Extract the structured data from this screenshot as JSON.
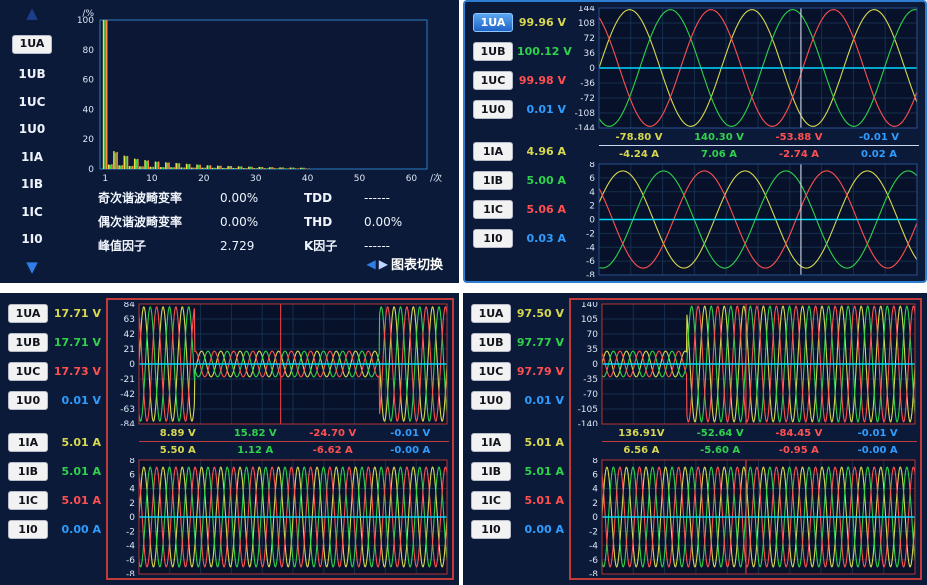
{
  "icons": {
    "up": "▲",
    "down": "▼",
    "left": "◀",
    "right": "▶"
  },
  "harmonic": {
    "channels": [
      "1UA",
      "1UB",
      "1UC",
      "1U0",
      "1IA",
      "1IB",
      "1IC",
      "1I0"
    ],
    "stats": [
      {
        "label": "奇次谐波畸变率",
        "value": "0.00%",
        "label2": "TDD",
        "value2": "------"
      },
      {
        "label": "偶次谐波畸变率",
        "value": "0.00%",
        "label2": "THD",
        "value2": "0.00%"
      },
      {
        "label": "峰值因子",
        "value": "2.729",
        "label2": "K因子",
        "value2": "------"
      }
    ],
    "chart_switch_label": "图表切换"
  },
  "wave_rt": {
    "channels": [
      {
        "id": "1UA",
        "value": "99.96 V",
        "color": "#d8d84e"
      },
      {
        "id": "1UB",
        "value": "100.12 V",
        "color": "#2fd24a"
      },
      {
        "id": "1UC",
        "value": "99.98 V",
        "color": "#ff5050"
      },
      {
        "id": "1U0",
        "value": "0.01 V",
        "color": "#2f9dff"
      },
      {
        "id": "1IA",
        "value": "4.96 A",
        "color": "#d8d84e"
      },
      {
        "id": "1IB",
        "value": "5.00 A",
        "color": "#2fd24a"
      },
      {
        "id": "1IC",
        "value": "5.06 A",
        "color": "#ff5050"
      },
      {
        "id": "1I0",
        "value": "0.03 A",
        "color": "#2f9dff"
      }
    ],
    "readouts_v": [
      {
        "text": "-78.80 V",
        "color": "#d8d84e"
      },
      {
        "text": "140.30 V",
        "color": "#2fd24a"
      },
      {
        "text": "-53.88 V",
        "color": "#ff5050"
      },
      {
        "text": "-0.01 V",
        "color": "#2f9dff"
      }
    ],
    "readouts_i": [
      {
        "text": "-4.24 A",
        "color": "#d8d84e"
      },
      {
        "text": "7.06 A",
        "color": "#2fd24a"
      },
      {
        "text": "-2.74 A",
        "color": "#ff5050"
      },
      {
        "text": "0.02 A",
        "color": "#2f9dff"
      }
    ]
  },
  "wave_bl": {
    "channels": [
      {
        "id": "1UA",
        "value": "17.71 V",
        "color": "#d8d84e"
      },
      {
        "id": "1UB",
        "value": "17.71 V",
        "color": "#2fd24a"
      },
      {
        "id": "1UC",
        "value": "17.73 V",
        "color": "#ff5050"
      },
      {
        "id": "1U0",
        "value": "0.01 V",
        "color": "#2f9dff"
      },
      {
        "id": "1IA",
        "value": "5.01 A",
        "color": "#d8d84e"
      },
      {
        "id": "1IB",
        "value": "5.01 A",
        "color": "#2fd24a"
      },
      {
        "id": "1IC",
        "value": "5.01 A",
        "color": "#ff5050"
      },
      {
        "id": "1I0",
        "value": "0.00 A",
        "color": "#2f9dff"
      }
    ],
    "readouts_v": [
      {
        "text": "8.89 V",
        "color": "#d8d84e"
      },
      {
        "text": "15.82 V",
        "color": "#2fd24a"
      },
      {
        "text": "-24.70 V",
        "color": "#ff5050"
      },
      {
        "text": "-0.01 V",
        "color": "#2f9dff"
      }
    ],
    "readouts_i": [
      {
        "text": "5.50 A",
        "color": "#d8d84e"
      },
      {
        "text": "1.12 A",
        "color": "#2fd24a"
      },
      {
        "text": "-6.62 A",
        "color": "#ff5050"
      },
      {
        "text": "-0.00 A",
        "color": "#2f9dff"
      }
    ]
  },
  "wave_br": {
    "channels": [
      {
        "id": "1UA",
        "value": "97.50 V",
        "color": "#d8d84e"
      },
      {
        "id": "1UB",
        "value": "97.77 V",
        "color": "#2fd24a"
      },
      {
        "id": "1UC",
        "value": "97.79 V",
        "color": "#ff5050"
      },
      {
        "id": "1U0",
        "value": "0.01 V",
        "color": "#2f9dff"
      },
      {
        "id": "1IA",
        "value": "5.01 A",
        "color": "#d8d84e"
      },
      {
        "id": "1IB",
        "value": "5.01 A",
        "color": "#2fd24a"
      },
      {
        "id": "1IC",
        "value": "5.01 A",
        "color": "#ff5050"
      },
      {
        "id": "1I0",
        "value": "0.00 A",
        "color": "#2f9dff"
      }
    ],
    "readouts_v": [
      {
        "text": "136.91V",
        "color": "#d8d84e"
      },
      {
        "text": "-52.64 V",
        "color": "#2fd24a"
      },
      {
        "text": "-84.45 V",
        "color": "#ff5050"
      },
      {
        "text": "-0.01 V",
        "color": "#2f9dff"
      }
    ],
    "readouts_i": [
      {
        "text": "6.56 A",
        "color": "#d8d84e"
      },
      {
        "text": "-5.60 A",
        "color": "#2fd24a"
      },
      {
        "text": "-0.95 A",
        "color": "#ff5050"
      },
      {
        "text": "-0.00 A",
        "color": "#2f9dff"
      }
    ]
  },
  "chart_data": [
    {
      "type": "bar",
      "y_unit": "/%",
      "x_unit": "/次",
      "ylim": [
        0,
        100
      ],
      "yticks": [
        100,
        80,
        60,
        40,
        20,
        0
      ],
      "xticks": [
        1,
        10,
        20,
        30,
        40,
        50,
        60
      ],
      "xmax": 63,
      "orders": [
        1,
        2,
        3,
        4,
        5,
        6,
        7,
        8,
        9,
        10,
        11,
        12,
        13,
        14,
        15,
        16,
        17,
        18,
        19,
        20,
        21,
        22,
        23,
        24,
        25,
        26,
        27,
        28,
        29,
        30,
        31,
        32,
        33,
        34,
        35,
        36,
        37,
        38,
        39,
        40
      ],
      "series": [
        {
          "name": "1UA",
          "color": "#e8e24e",
          "values": [
            100,
            3,
            12,
            2.5,
            9,
            2,
            7,
            1.8,
            6,
            1.5,
            5,
            1.3,
            4.5,
            1.2,
            4,
            1.1,
            3.5,
            1,
            3,
            0.9,
            2.5,
            0.8,
            2.2,
            0.7,
            2,
            0.7,
            1.8,
            0.6,
            1.6,
            0.6,
            1.4,
            0.5,
            1.2,
            0.5,
            1.1,
            0.4,
            1,
            0.4,
            0.9,
            0.3
          ]
        },
        {
          "name": "1UB",
          "color": "#2fd24a",
          "values": [
            100,
            2.8,
            11,
            2.3,
            8.5,
            1.9,
            6.5,
            1.7,
            5.5,
            1.4,
            4.8,
            1.2,
            4.2,
            1.1,
            3.8,
            1,
            3.2,
            0.9,
            2.8,
            0.8,
            2.4,
            0.8,
            2.1,
            0.7,
            1.9,
            0.6,
            1.7,
            0.6,
            1.5,
            0.5,
            1.3,
            0.5,
            1.2,
            0.4,
            1,
            0.4,
            0.9,
            0.3,
            0.8,
            0.3
          ]
        },
        {
          "name": "1UC",
          "color": "#ff8c42",
          "values": [
            100,
            3.2,
            11.5,
            2.6,
            8.8,
            2.1,
            6.8,
            1.8,
            5.8,
            1.5,
            5,
            1.3,
            4.4,
            1.2,
            3.9,
            1,
            3.4,
            0.9,
            2.9,
            0.9,
            2.5,
            0.8,
            2.2,
            0.7,
            2,
            0.7,
            1.7,
            0.6,
            1.5,
            0.6,
            1.4,
            0.5,
            1.2,
            0.5,
            1.1,
            0.4,
            1,
            0.4,
            0.9,
            0.3
          ]
        }
      ]
    },
    {
      "type": "line",
      "ylim": [
        -144,
        144
      ],
      "yticks": [
        144,
        108,
        72,
        36,
        0,
        -36,
        -72,
        -108,
        -144
      ],
      "cycles": 2.6,
      "series": [
        {
          "name": "1UA",
          "color": "#d8d84e",
          "amplitude": 140,
          "phase_deg": 0
        },
        {
          "name": "1UB",
          "color": "#2fd24a",
          "amplitude": 140,
          "phase_deg": -120
        },
        {
          "name": "1UC",
          "color": "#ff5050",
          "amplitude": 140,
          "phase_deg": 120
        },
        {
          "name": "1U0",
          "color": "#00d8ff",
          "amplitude": 0,
          "phase_deg": 0,
          "width": 1.6
        }
      ],
      "cursor": {
        "x": 0.635,
        "color": "#e8eefc"
      },
      "frame": "#27508f"
    },
    {
      "type": "line",
      "ylim": [
        -8,
        8
      ],
      "yticks": [
        8,
        6,
        4,
        2,
        0,
        -2,
        -4,
        -6,
        -8
      ],
      "cycles": 2.6,
      "series": [
        {
          "name": "1IA",
          "color": "#d8d84e",
          "amplitude": 7,
          "phase_deg": 20
        },
        {
          "name": "1IB",
          "color": "#2fd24a",
          "amplitude": 7,
          "phase_deg": -100
        },
        {
          "name": "1IC",
          "color": "#ff5050",
          "amplitude": 7,
          "phase_deg": 140
        },
        {
          "name": "1I0",
          "color": "#00d8ff",
          "amplitude": 0,
          "phase_deg": 0,
          "width": 1.6
        }
      ],
      "cursor": {
        "x": 0.635,
        "color": "#e8eefc"
      },
      "frame": "#27508f"
    },
    {
      "type": "line",
      "ylim": [
        -84,
        84
      ],
      "yticks": [
        84,
        63,
        42,
        21,
        0,
        -21,
        -42,
        -63,
        -84
      ],
      "cycles": 16,
      "series": [
        {
          "name": "1UA",
          "color": "#d8d84e",
          "phase_deg": 0,
          "envelope": [
            {
              "t0": 0,
              "t1": 0.18,
              "amp": 80
            },
            {
              "t0": 0.18,
              "t1": 0.78,
              "amp": 18
            },
            {
              "t0": 0.78,
              "t1": 1,
              "amp": 80
            }
          ]
        },
        {
          "name": "1UB",
          "color": "#2fd24a",
          "phase_deg": -120,
          "envelope": [
            {
              "t0": 0,
              "t1": 0.18,
              "amp": 80
            },
            {
              "t0": 0.18,
              "t1": 0.78,
              "amp": 18
            },
            {
              "t0": 0.78,
              "t1": 1,
              "amp": 80
            }
          ]
        },
        {
          "name": "1UC",
          "color": "#ff5050",
          "phase_deg": 120,
          "envelope": [
            {
              "t0": 0,
              "t1": 0.18,
              "amp": 80
            },
            {
              "t0": 0.18,
              "t1": 0.78,
              "amp": 18
            },
            {
              "t0": 0.78,
              "t1": 1,
              "amp": 80
            }
          ]
        },
        {
          "name": "1U0",
          "color": "#00d8ff",
          "amplitude": 0,
          "phase_deg": 0,
          "width": 1.6
        }
      ],
      "cursor": {
        "x": 0.46,
        "color": "#ff4545"
      },
      "frame": "#b03535"
    },
    {
      "type": "line",
      "ylim": [
        -8,
        8
      ],
      "yticks": [
        8,
        6,
        4,
        2,
        0,
        -2,
        -4,
        -6,
        -8
      ],
      "cycles": 16,
      "series": [
        {
          "name": "1IA",
          "color": "#d8d84e",
          "amplitude": 7,
          "phase_deg": 0
        },
        {
          "name": "1IB",
          "color": "#2fd24a",
          "amplitude": 7,
          "phase_deg": -120
        },
        {
          "name": "1IC",
          "color": "#ff5050",
          "amplitude": 7,
          "phase_deg": 120
        },
        {
          "name": "1I0",
          "color": "#00d8ff",
          "amplitude": 0,
          "phase_deg": 0,
          "width": 1.6
        }
      ],
      "frame": "#b03535"
    },
    {
      "type": "line",
      "ylim": [
        -140,
        140
      ],
      "yticks": [
        140,
        105,
        70,
        35,
        0,
        -35,
        -70,
        -105,
        -140
      ],
      "cycles": 16,
      "series": [
        {
          "name": "1UA",
          "color": "#d8d84e",
          "phase_deg": 0,
          "envelope": [
            {
              "t0": 0,
              "t1": 0.27,
              "amp": 30
            },
            {
              "t0": 0.27,
              "t1": 1,
              "amp": 135
            }
          ]
        },
        {
          "name": "1UB",
          "color": "#2fd24a",
          "phase_deg": -120,
          "envelope": [
            {
              "t0": 0,
              "t1": 0.27,
              "amp": 30
            },
            {
              "t0": 0.27,
              "t1": 1,
              "amp": 135
            }
          ]
        },
        {
          "name": "1UC",
          "color": "#ff5050",
          "phase_deg": 120,
          "envelope": [
            {
              "t0": 0,
              "t1": 0.27,
              "amp": 30
            },
            {
              "t0": 0.27,
              "t1": 1,
              "amp": 135
            }
          ]
        },
        {
          "name": "1U0",
          "color": "#00d8ff",
          "amplitude": 0,
          "phase_deg": 0,
          "width": 1.6
        }
      ],
      "cursor": {
        "x": 0.46,
        "color": "#ff4545"
      },
      "frame": "#b03535"
    },
    {
      "type": "line",
      "ylim": [
        -8,
        8
      ],
      "yticks": [
        8,
        6,
        4,
        2,
        0,
        -2,
        -4,
        -6,
        -8
      ],
      "cycles": 16,
      "series": [
        {
          "name": "1IA",
          "color": "#d8d84e",
          "amplitude": 7,
          "phase_deg": 0
        },
        {
          "name": "1IB",
          "color": "#2fd24a",
          "amplitude": 7,
          "phase_deg": -120
        },
        {
          "name": "1IC",
          "color": "#ff5050",
          "amplitude": 7,
          "phase_deg": 120
        },
        {
          "name": "1I0",
          "color": "#00d8ff",
          "amplitude": 0,
          "phase_deg": 0,
          "width": 1.6
        }
      ],
      "cursor": {
        "x": 0.46,
        "color": "#ff4545"
      },
      "frame": "#b03535"
    }
  ]
}
